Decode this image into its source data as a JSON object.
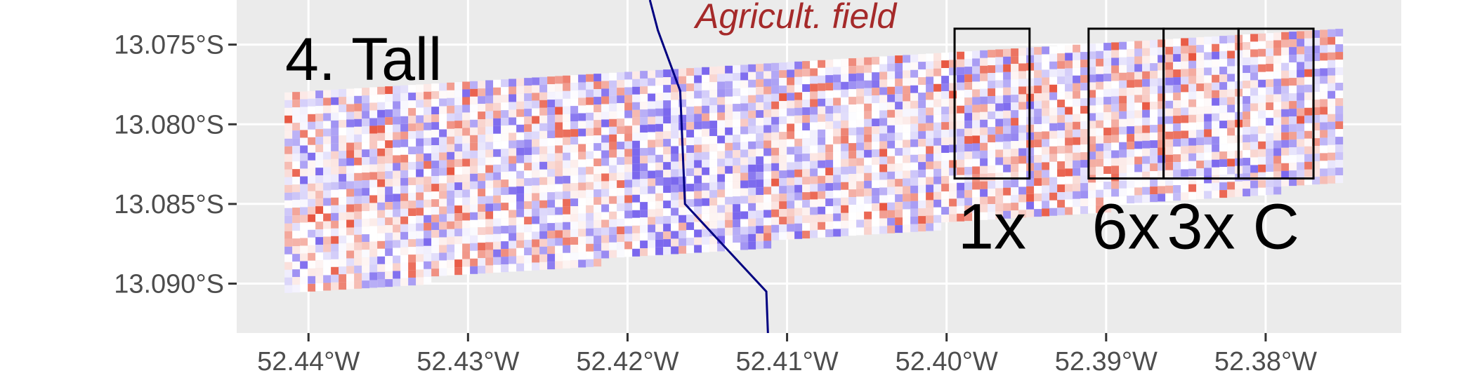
{
  "panel_title": "4. Tall",
  "field_label": "Agricult. field",
  "box_labels": [
    "1x",
    "6x",
    "3x",
    "C"
  ],
  "axes": {
    "x_ticks": [
      "52.44°W",
      "52.43°W",
      "52.42°W",
      "52.41°W",
      "52.40°W",
      "52.39°W",
      "52.38°W"
    ],
    "y_ticks": [
      "13.075°S",
      "13.080°S",
      "13.085°S",
      "13.090°S"
    ]
  },
  "colors": {
    "panel_background": "#ebebeb",
    "grid": "#ffffff",
    "boundary_line": "#000080",
    "field_label": "#a52a2a",
    "low": "#7b68ee",
    "mid": "#ffffff",
    "high": "#e8553f",
    "box_outline": "#000000"
  },
  "chart_data": {
    "type": "heatmap",
    "description_units": "longitude (°W), latitude (°S)",
    "xlim": [
      52.4445,
      52.3715
    ],
    "ylim": [
      13.0722,
      13.0931
    ],
    "grid": true,
    "color_scale": "diverging blue-white-red",
    "plot_extent": {
      "lon_range": [
        52.4415,
        52.3755
      ],
      "lat_top_left": 13.078,
      "lat_top_right": 13.074,
      "lat_bottom_left": 13.0905,
      "lat_bottom_right": 13.0835
    },
    "treatment_boxes": [
      {
        "label": "1x",
        "lon": [
          52.3995,
          52.3948
        ],
        "lat": [
          13.074,
          13.0834
        ]
      },
      {
        "label": "6x",
        "lon": [
          52.3911,
          52.3864
        ],
        "lat": [
          13.074,
          13.0834
        ]
      },
      {
        "label": "3x",
        "lon": [
          52.3864,
          52.3817
        ],
        "lat": [
          13.074,
          13.0834
        ]
      },
      {
        "label": "C",
        "lon": [
          52.3817,
          52.377
        ],
        "lat": [
          13.074,
          13.0834
        ]
      }
    ],
    "field_boundary": {
      "lon": [
        52.4186,
        52.4181,
        52.4167,
        52.4164,
        52.4113,
        52.4112
      ],
      "lat": [
        13.0722,
        13.0741,
        13.0779,
        13.085,
        13.0905,
        13.0931
      ]
    }
  }
}
